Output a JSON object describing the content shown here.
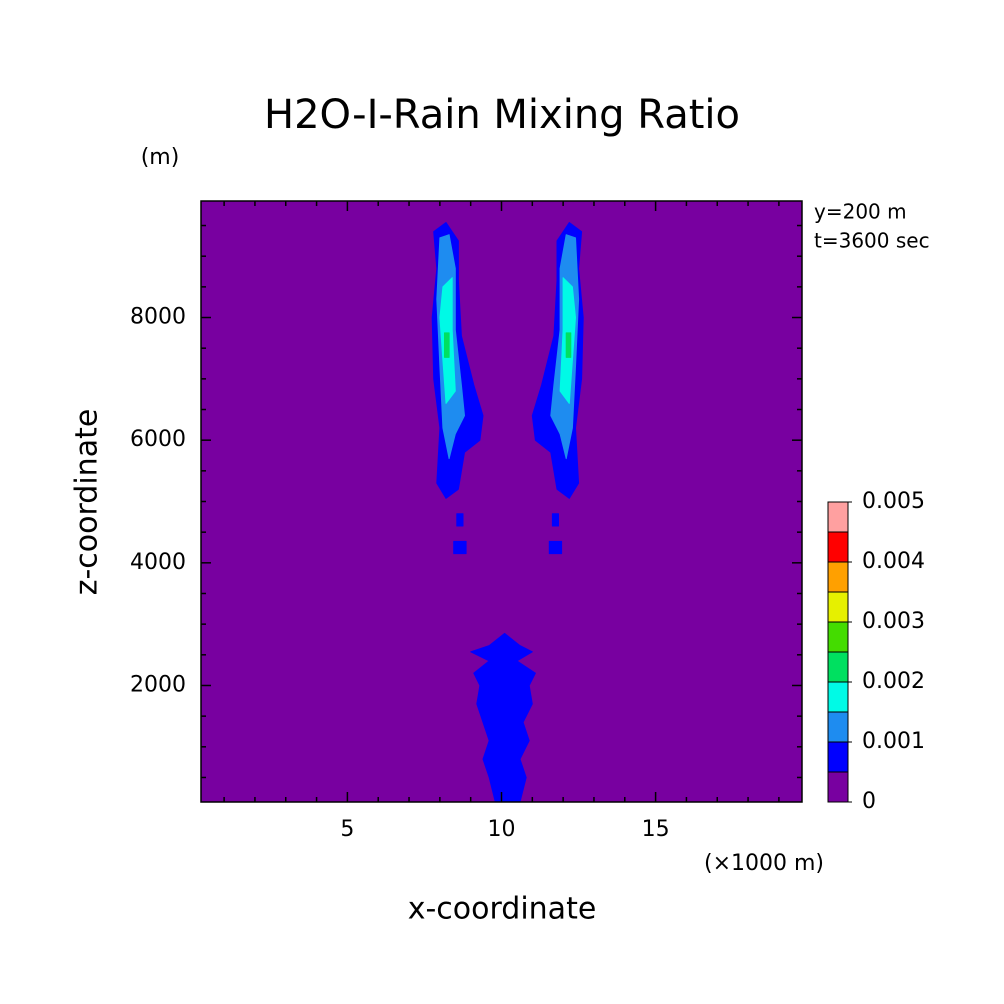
{
  "chart_data": {
    "type": "contour",
    "title": "H2O-I-Rain Mixing Ratio",
    "y_unit": "(m)",
    "annotations": [
      "y=200 m",
      "t=3600 sec"
    ],
    "x_unit": "(×1000 m)",
    "xlabel": "x-coordinate",
    "ylabel": "z-coordinate",
    "xlim": [
      0.25,
      19.75
    ],
    "ylim": [
      100,
      9900
    ],
    "xticks": [
      5,
      10,
      15
    ],
    "yticks": [
      2000,
      4000,
      6000,
      8000
    ],
    "xticks_minor": [
      1,
      2,
      3,
      4,
      6,
      7,
      8,
      9,
      11,
      12,
      13,
      14,
      16,
      17,
      18,
      19
    ],
    "yticks_minor": [
      500,
      1000,
      1500,
      2500,
      3000,
      3500,
      4500,
      5000,
      5500,
      6500,
      7000,
      7500,
      8500,
      9000,
      9500
    ],
    "levels": [
      0,
      0.0005,
      0.001,
      0.0015,
      0.002,
      0.0025,
      0.003,
      0.0035,
      0.004,
      0.0045,
      0.005
    ],
    "colors": [
      "#7800a0",
      "#0000ff",
      "#1e8cf0",
      "#00fae6",
      "#00e060",
      "#44dc00",
      "#e6f000",
      "#ffa000",
      "#ff0000",
      "#ffa0a0"
    ],
    "colorbar_ticks": [
      0,
      0.001,
      0.002,
      0.003,
      0.004,
      0.005
    ],
    "contours": [
      {
        "level": 0.0005,
        "x": [
          7.8,
          8.2,
          8.6,
          8.6,
          8.7,
          9.1,
          9.4,
          9.3,
          8.8,
          8.6,
          8.2,
          7.9,
          8.0,
          7.8,
          7.75,
          7.9
        ],
        "y": [
          9400,
          9550,
          9250,
          8600,
          7700,
          6900,
          6400,
          6000,
          5800,
          5200,
          5050,
          5300,
          6200,
          7000,
          8000,
          8800
        ]
      },
      {
        "level": 0.0005,
        "x": [
          12.6,
          12.2,
          11.8,
          11.8,
          11.7,
          11.3,
          11.0,
          11.1,
          11.6,
          11.8,
          12.2,
          12.5,
          12.4,
          12.6,
          12.65,
          12.5
        ],
        "y": [
          9400,
          9550,
          9250,
          8600,
          7700,
          6900,
          6400,
          6000,
          5800,
          5200,
          5050,
          5300,
          6200,
          7000,
          8000,
          8800
        ]
      },
      {
        "level": 0.0005,
        "x": [
          8.55,
          8.75,
          8.75,
          8.55
        ],
        "y": [
          4800,
          4800,
          4600,
          4600
        ]
      },
      {
        "level": 0.0005,
        "x": [
          8.45,
          8.85,
          8.85,
          8.45
        ],
        "y": [
          4350,
          4350,
          4150,
          4150
        ]
      },
      {
        "level": 0.0005,
        "x": [
          11.65,
          11.85,
          11.85,
          11.65
        ],
        "y": [
          4800,
          4800,
          4600,
          4600
        ]
      },
      {
        "level": 0.0005,
        "x": [
          11.55,
          11.95,
          11.95,
          11.55
        ],
        "y": [
          4350,
          4350,
          4150,
          4150
        ]
      },
      {
        "level": 0.0005,
        "x": [
          9.8,
          9.6,
          9.4,
          9.6,
          9.4,
          9.2,
          9.3,
          9.1,
          9.6,
          9.0,
          9.6,
          10.1,
          10.6,
          11.0,
          10.5,
          11.1,
          10.9,
          11.0,
          10.7,
          10.9,
          10.6,
          10.8,
          10.6
        ],
        "y": [
          100,
          500,
          800,
          1100,
          1400,
          1700,
          2000,
          2200,
          2400,
          2550,
          2650,
          2850,
          2650,
          2550,
          2400,
          2200,
          2000,
          1700,
          1400,
          1100,
          800,
          500,
          100
        ]
      },
      {
        "level": 0.001,
        "x": [
          8.0,
          8.3,
          8.5,
          8.5,
          8.7,
          8.8,
          8.5,
          8.3,
          8.1,
          8.0,
          7.9
        ],
        "y": [
          9300,
          9350,
          8800,
          7800,
          6900,
          6400,
          6100,
          5700,
          6200,
          7200,
          8300
        ]
      },
      {
        "level": 0.001,
        "x": [
          12.4,
          12.1,
          11.9,
          11.9,
          11.7,
          11.6,
          11.9,
          12.1,
          12.3,
          12.4,
          12.5
        ],
        "y": [
          9300,
          9350,
          8800,
          7800,
          6900,
          6400,
          6100,
          5700,
          6200,
          7200,
          8300
        ]
      },
      {
        "level": 0.0015,
        "x": [
          8.1,
          8.4,
          8.4,
          8.5,
          8.2,
          8.1,
          8.0
        ],
        "y": [
          8500,
          8650,
          7800,
          6800,
          6600,
          7300,
          8000
        ]
      },
      {
        "level": 0.0015,
        "x": [
          12.3,
          12.0,
          12.0,
          11.9,
          12.2,
          12.3,
          12.4
        ],
        "y": [
          8500,
          8650,
          7800,
          6800,
          6600,
          7300,
          8000
        ]
      },
      {
        "level": 0.002,
        "x": [
          8.15,
          8.3,
          8.3,
          8.15
        ],
        "y": [
          7750,
          7750,
          7350,
          7350
        ]
      },
      {
        "level": 0.002,
        "x": [
          12.1,
          12.25,
          12.25,
          12.1
        ],
        "y": [
          7750,
          7750,
          7350,
          7350
        ]
      }
    ]
  }
}
